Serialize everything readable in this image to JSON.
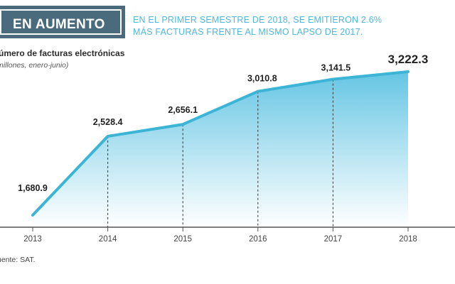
{
  "badge": {
    "label": "EN AUMENTO"
  },
  "headline": {
    "line1": "EN EL PRIMER SEMESTRE DE 2018, SE EMITIERON 2.6%",
    "line2": "MÁS FACTURAS FRENTE AL MISMO LAPSO DE 2017."
  },
  "chart_data": {
    "type": "area",
    "title": "Número de facturas electrónicas",
    "subtitle": "(millones, enero-junio)",
    "title_visible": "úmero de facturas electrónicas",
    "subtitle_visible": "millones, enero-junio)",
    "categories": [
      "2013",
      "2014",
      "2015",
      "2016",
      "2017",
      "2018"
    ],
    "values": [
      1680.9,
      2528.4,
      2656.1,
      3010.8,
      3141.5,
      3222.3
    ],
    "value_labels": [
      "1,680.9",
      "2,528.4",
      "2,656.1",
      "3,010.8",
      "3,141.5",
      "3,222.3"
    ],
    "ylim": [
      1500,
      3300
    ],
    "grid": false,
    "colors": {
      "line": "#3bb4d6",
      "fill_top": "#5cc2e2",
      "fill_bottom": "#ffffff",
      "axis": "#555555",
      "dash": "#333333"
    }
  },
  "source": "uente: SAT."
}
